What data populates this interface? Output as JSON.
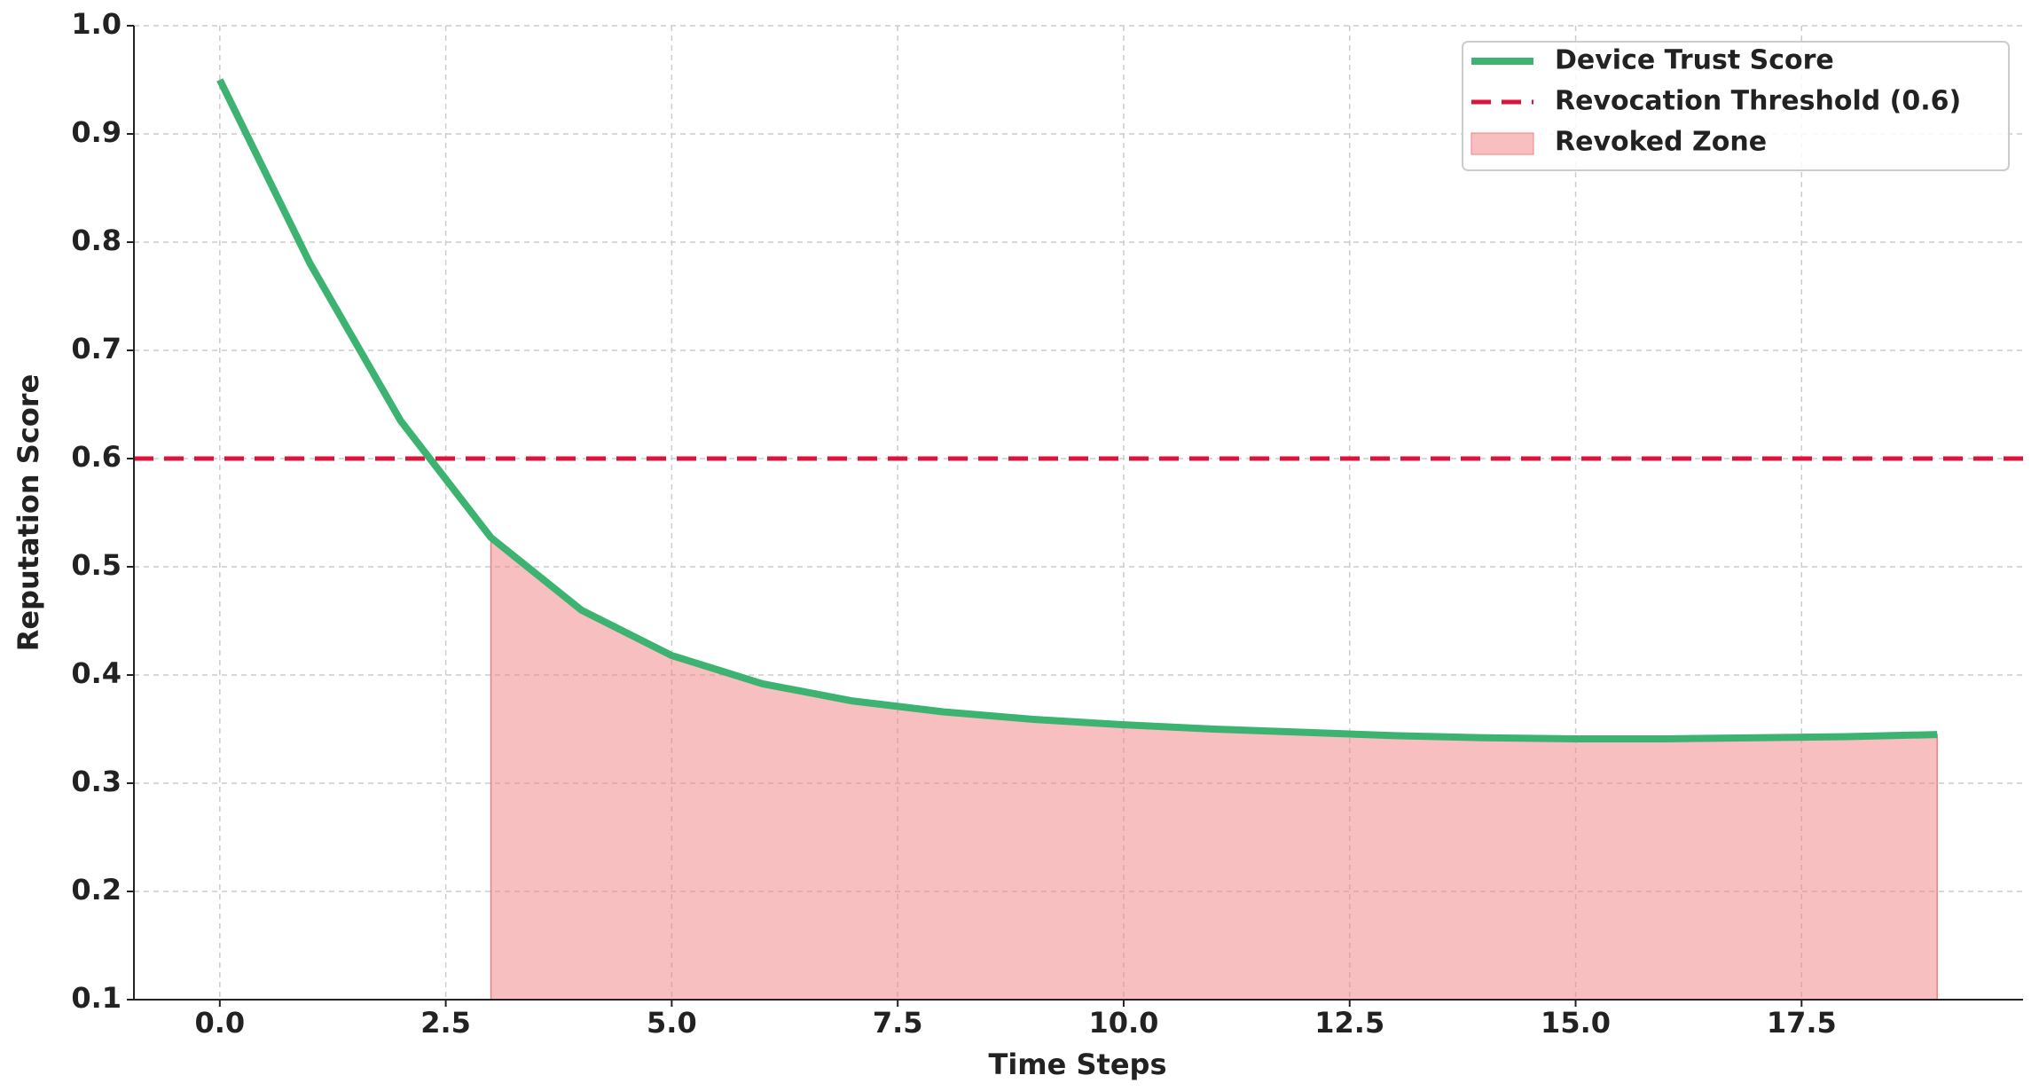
{
  "chart_data": {
    "type": "line",
    "xlabel": "Time Steps",
    "ylabel": "Reputation Score",
    "x": [
      0,
      1,
      2,
      3,
      4,
      5,
      6,
      7,
      8,
      9,
      10,
      11,
      12,
      13,
      14,
      15,
      16,
      17,
      18,
      19
    ],
    "series": [
      {
        "name": "Device Trust Score",
        "color": "#3cb371",
        "values": [
          0.95,
          0.78,
          0.635,
          0.527,
          0.46,
          0.418,
          0.392,
          0.376,
          0.366,
          0.359,
          0.354,
          0.35,
          0.347,
          0.344,
          0.342,
          0.341,
          0.341,
          0.342,
          0.343,
          0.345
        ]
      }
    ],
    "threshold": {
      "name": "Revocation Threshold (0.6)",
      "value": 0.6,
      "color": "#dc143c"
    },
    "fill": {
      "name": "Revoked Zone",
      "color": "#f08080",
      "x_start": 3
    },
    "xlim": [
      -0.95,
      19.95
    ],
    "xticks": [
      {
        "value": 0,
        "label": "0.0"
      },
      2.5,
      {
        "value": 5,
        "label": "5.0"
      },
      7.5,
      {
        "value": 10,
        "label": "10.0"
      },
      12.5,
      {
        "value": 15,
        "label": "15.0"
      },
      17.5
    ],
    "ylim": [
      0.1,
      1.0
    ],
    "yticks": [
      0.1,
      0.2,
      0.3,
      0.4,
      0.5,
      0.6,
      0.7,
      0.8,
      0.9,
      {
        "value": 1,
        "label": "1.0"
      }
    ],
    "grid": true,
    "legend": "upper right"
  }
}
